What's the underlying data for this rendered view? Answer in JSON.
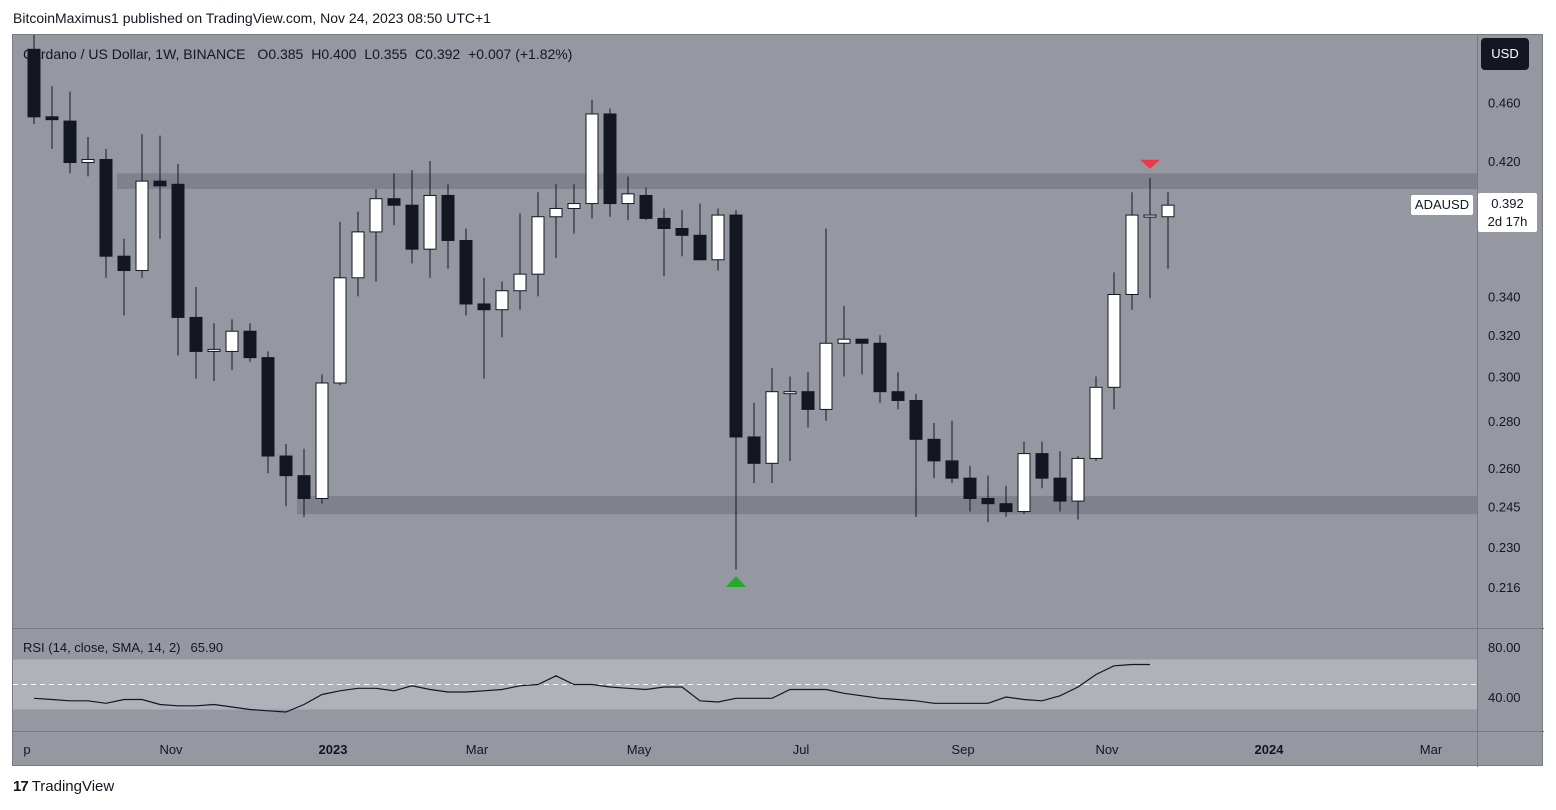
{
  "publisher": "BitcoinMaximus1 published on TradingView.com, Nov 24, 2023 08:50 UTC+1",
  "symbol": {
    "title": "Cardano / US Dollar, 1W, BINANCE",
    "open_label": "O",
    "open": "0.385",
    "high_label": "H",
    "high": "0.400",
    "low_label": "L",
    "low": "0.355",
    "close_label": "C",
    "close": "0.392",
    "change": "+0.007 (+1.82%)"
  },
  "currency_button": "USD",
  "price_tag": {
    "ticker": "ADAUSD",
    "price": "0.392",
    "countdown": "2d 17h"
  },
  "rsi": {
    "label": "RSI (14, close, SMA, 14, 2)",
    "value": "65.90"
  },
  "footer": {
    "mark": "17",
    "brand": "TradingView"
  },
  "colors": {
    "background": "#9598a1",
    "up_candle": "#ffffff",
    "down_candle": "#131722",
    "zone": "#787b86",
    "bearish_marker": "#f23645",
    "bullish_marker": "#22ab26"
  },
  "chart_data": {
    "type": "candlestick",
    "interval": "1W",
    "y_axis": {
      "ticks": [
        0.46,
        0.42,
        0.392,
        0.34,
        0.32,
        0.3,
        0.28,
        0.26,
        0.245,
        0.23,
        0.216
      ],
      "tick_labels": [
        "0.460",
        "0.420",
        "0.340",
        "0.320",
        "0.300",
        "0.280",
        "0.260",
        "0.245",
        "0.230",
        "0.216"
      ],
      "scale": "log",
      "range": [
        0.21,
        0.5
      ]
    },
    "x_axis": {
      "labels": [
        {
          "text": "p",
          "date": "2022-09-05"
        },
        {
          "text": "Nov",
          "date": "2022-10-31"
        },
        {
          "text": "2023",
          "date": "2023-01-02",
          "bold": true
        },
        {
          "text": "Mar",
          "date": "2023-02-27"
        },
        {
          "text": "May",
          "date": "2023-05-01"
        },
        {
          "text": "Jul",
          "date": "2023-07-03"
        },
        {
          "text": "Sep",
          "date": "2023-09-04"
        },
        {
          "text": "Nov",
          "date": "2023-10-30"
        },
        {
          "text": "2024",
          "date": "2024-01-01",
          "bold": true
        },
        {
          "text": "Mar",
          "date": "2024-03-04"
        }
      ]
    },
    "zones": [
      {
        "low": 0.402,
        "high": 0.412,
        "from": "2022-10-10",
        "to": "2024-03-25"
      },
      {
        "low": 0.242,
        "high": 0.249,
        "from": "2022-12-19",
        "to": "2024-03-25"
      }
    ],
    "markers": [
      {
        "type": "bearish",
        "date": "2023-11-13",
        "price": 0.413
      },
      {
        "type": "bullish",
        "date": "2023-06-05",
        "price": 0.215
      }
    ],
    "candles": [
      {
        "date": "2022-09-05",
        "o": 0.5,
        "h": 0.52,
        "l": 0.445,
        "c": 0.45
      },
      {
        "date": "2022-09-12",
        "o": 0.45,
        "h": 0.472,
        "l": 0.428,
        "c": 0.448
      },
      {
        "date": "2022-09-19",
        "o": 0.447,
        "h": 0.468,
        "l": 0.412,
        "c": 0.419
      },
      {
        "date": "2022-09-26",
        "o": 0.419,
        "h": 0.436,
        "l": 0.41,
        "c": 0.421
      },
      {
        "date": "2022-10-03",
        "o": 0.421,
        "h": 0.428,
        "l": 0.35,
        "c": 0.362
      },
      {
        "date": "2022-10-10",
        "o": 0.362,
        "h": 0.372,
        "l": 0.33,
        "c": 0.354
      },
      {
        "date": "2022-10-17",
        "o": 0.354,
        "h": 0.438,
        "l": 0.35,
        "c": 0.407
      },
      {
        "date": "2022-10-24",
        "o": 0.407,
        "h": 0.437,
        "l": 0.372,
        "c": 0.404
      },
      {
        "date": "2022-10-31",
        "o": 0.405,
        "h": 0.418,
        "l": 0.31,
        "c": 0.329
      },
      {
        "date": "2022-11-07",
        "o": 0.329,
        "h": 0.345,
        "l": 0.299,
        "c": 0.312
      },
      {
        "date": "2022-11-14",
        "o": 0.312,
        "h": 0.326,
        "l": 0.298,
        "c": 0.313
      },
      {
        "date": "2022-11-21",
        "o": 0.312,
        "h": 0.328,
        "l": 0.303,
        "c": 0.322
      },
      {
        "date": "2022-11-28",
        "o": 0.322,
        "h": 0.326,
        "l": 0.307,
        "c": 0.309
      },
      {
        "date": "2022-12-05",
        "o": 0.309,
        "h": 0.312,
        "l": 0.258,
        "c": 0.265
      },
      {
        "date": "2022-12-12",
        "o": 0.265,
        "h": 0.27,
        "l": 0.245,
        "c": 0.257
      },
      {
        "date": "2022-12-19",
        "o": 0.257,
        "h": 0.268,
        "l": 0.241,
        "c": 0.248
      },
      {
        "date": "2022-12-26",
        "o": 0.248,
        "h": 0.301,
        "l": 0.246,
        "c": 0.297
      },
      {
        "date": "2023-01-02",
        "o": 0.297,
        "h": 0.382,
        "l": 0.296,
        "c": 0.35
      },
      {
        "date": "2023-01-09",
        "o": 0.35,
        "h": 0.388,
        "l": 0.34,
        "c": 0.376
      },
      {
        "date": "2023-01-16",
        "o": 0.376,
        "h": 0.402,
        "l": 0.348,
        "c": 0.396
      },
      {
        "date": "2023-01-23",
        "o": 0.396,
        "h": 0.412,
        "l": 0.38,
        "c": 0.392
      },
      {
        "date": "2023-01-30",
        "o": 0.392,
        "h": 0.414,
        "l": 0.358,
        "c": 0.366
      },
      {
        "date": "2023-02-06",
        "o": 0.366,
        "h": 0.42,
        "l": 0.35,
        "c": 0.398
      },
      {
        "date": "2023-02-13",
        "o": 0.398,
        "h": 0.405,
        "l": 0.355,
        "c": 0.371
      },
      {
        "date": "2023-02-20",
        "o": 0.371,
        "h": 0.378,
        "l": 0.33,
        "c": 0.336
      },
      {
        "date": "2023-02-27",
        "o": 0.336,
        "h": 0.35,
        "l": 0.299,
        "c": 0.333
      },
      {
        "date": "2023-03-06",
        "o": 0.333,
        "h": 0.348,
        "l": 0.319,
        "c": 0.343
      },
      {
        "date": "2023-03-13",
        "o": 0.343,
        "h": 0.387,
        "l": 0.333,
        "c": 0.352
      },
      {
        "date": "2023-03-20",
        "o": 0.352,
        "h": 0.4,
        "l": 0.34,
        "c": 0.385
      },
      {
        "date": "2023-03-27",
        "o": 0.385,
        "h": 0.405,
        "l": 0.361,
        "c": 0.39
      },
      {
        "date": "2023-04-03",
        "o": 0.39,
        "h": 0.405,
        "l": 0.375,
        "c": 0.393
      },
      {
        "date": "2023-04-10",
        "o": 0.393,
        "h": 0.462,
        "l": 0.384,
        "c": 0.452
      },
      {
        "date": "2023-04-17",
        "o": 0.452,
        "h": 0.456,
        "l": 0.385,
        "c": 0.393
      },
      {
        "date": "2023-04-24",
        "o": 0.393,
        "h": 0.41,
        "l": 0.383,
        "c": 0.399
      },
      {
        "date": "2023-05-01",
        "o": 0.398,
        "h": 0.403,
        "l": 0.383,
        "c": 0.384
      },
      {
        "date": "2023-05-08",
        "o": 0.384,
        "h": 0.39,
        "l": 0.351,
        "c": 0.378
      },
      {
        "date": "2023-05-15",
        "o": 0.378,
        "h": 0.389,
        "l": 0.362,
        "c": 0.374
      },
      {
        "date": "2023-05-22",
        "o": 0.374,
        "h": 0.393,
        "l": 0.362,
        "c": 0.36
      },
      {
        "date": "2023-05-29",
        "o": 0.36,
        "h": 0.39,
        "l": 0.354,
        "c": 0.386
      },
      {
        "date": "2023-06-05",
        "o": 0.386,
        "h": 0.389,
        "l": 0.222,
        "c": 0.273
      },
      {
        "date": "2023-06-12",
        "o": 0.273,
        "h": 0.288,
        "l": 0.254,
        "c": 0.262
      },
      {
        "date": "2023-06-19",
        "o": 0.262,
        "h": 0.304,
        "l": 0.254,
        "c": 0.293
      },
      {
        "date": "2023-06-26",
        "o": 0.293,
        "h": 0.3,
        "l": 0.263,
        "c": 0.293
      },
      {
        "date": "2023-07-03",
        "o": 0.293,
        "h": 0.302,
        "l": 0.277,
        "c": 0.285
      },
      {
        "date": "2023-07-10",
        "o": 0.285,
        "h": 0.378,
        "l": 0.28,
        "c": 0.316
      },
      {
        "date": "2023-07-17",
        "o": 0.316,
        "h": 0.335,
        "l": 0.3,
        "c": 0.318
      },
      {
        "date": "2023-07-24",
        "o": 0.318,
        "h": 0.318,
        "l": 0.301,
        "c": 0.316
      },
      {
        "date": "2023-07-31",
        "o": 0.316,
        "h": 0.32,
        "l": 0.288,
        "c": 0.293
      },
      {
        "date": "2023-08-07",
        "o": 0.293,
        "h": 0.302,
        "l": 0.285,
        "c": 0.289
      },
      {
        "date": "2023-08-14",
        "o": 0.289,
        "h": 0.292,
        "l": 0.241,
        "c": 0.272
      },
      {
        "date": "2023-08-21",
        "o": 0.272,
        "h": 0.279,
        "l": 0.256,
        "c": 0.263
      },
      {
        "date": "2023-08-28",
        "o": 0.263,
        "h": 0.28,
        "l": 0.254,
        "c": 0.256
      },
      {
        "date": "2023-09-04",
        "o": 0.256,
        "h": 0.261,
        "l": 0.243,
        "c": 0.248
      },
      {
        "date": "2023-09-11",
        "o": 0.248,
        "h": 0.257,
        "l": 0.239,
        "c": 0.246
      },
      {
        "date": "2023-09-18",
        "o": 0.246,
        "h": 0.253,
        "l": 0.241,
        "c": 0.243
      },
      {
        "date": "2023-09-25",
        "o": 0.243,
        "h": 0.271,
        "l": 0.242,
        "c": 0.266
      },
      {
        "date": "2023-10-02",
        "o": 0.266,
        "h": 0.271,
        "l": 0.252,
        "c": 0.256
      },
      {
        "date": "2023-10-09",
        "o": 0.256,
        "h": 0.267,
        "l": 0.243,
        "c": 0.247
      },
      {
        "date": "2023-10-16",
        "o": 0.247,
        "h": 0.265,
        "l": 0.24,
        "c": 0.264
      },
      {
        "date": "2023-10-23",
        "o": 0.264,
        "h": 0.3,
        "l": 0.263,
        "c": 0.295
      },
      {
        "date": "2023-10-30",
        "o": 0.295,
        "h": 0.353,
        "l": 0.285,
        "c": 0.341
      },
      {
        "date": "2023-11-06",
        "o": 0.341,
        "h": 0.4,
        "l": 0.333,
        "c": 0.386
      },
      {
        "date": "2023-11-13",
        "o": 0.385,
        "h": 0.409,
        "l": 0.339,
        "c": 0.386
      },
      {
        "date": "2023-11-20",
        "o": 0.385,
        "h": 0.4,
        "l": 0.355,
        "c": 0.392
      }
    ],
    "rsi": {
      "range": [
        20,
        100
      ],
      "tick_labels": [
        "80.00",
        "40.00"
      ],
      "band": [
        30,
        70
      ],
      "midline": 50,
      "values": [
        39,
        38,
        37,
        37,
        35,
        38,
        38,
        34,
        33,
        33,
        34,
        32,
        30,
        29,
        28,
        34,
        42,
        45,
        47,
        47,
        45,
        49,
        46,
        44,
        44,
        45,
        46,
        49,
        50,
        57,
        50,
        50,
        48,
        47,
        46,
        48,
        48,
        37,
        36,
        39,
        39,
        39,
        46,
        46,
        46,
        43,
        41,
        39,
        38,
        37,
        35,
        35,
        35,
        35,
        40,
        38,
        37,
        41,
        48,
        58,
        65,
        66,
        66
      ]
    }
  }
}
